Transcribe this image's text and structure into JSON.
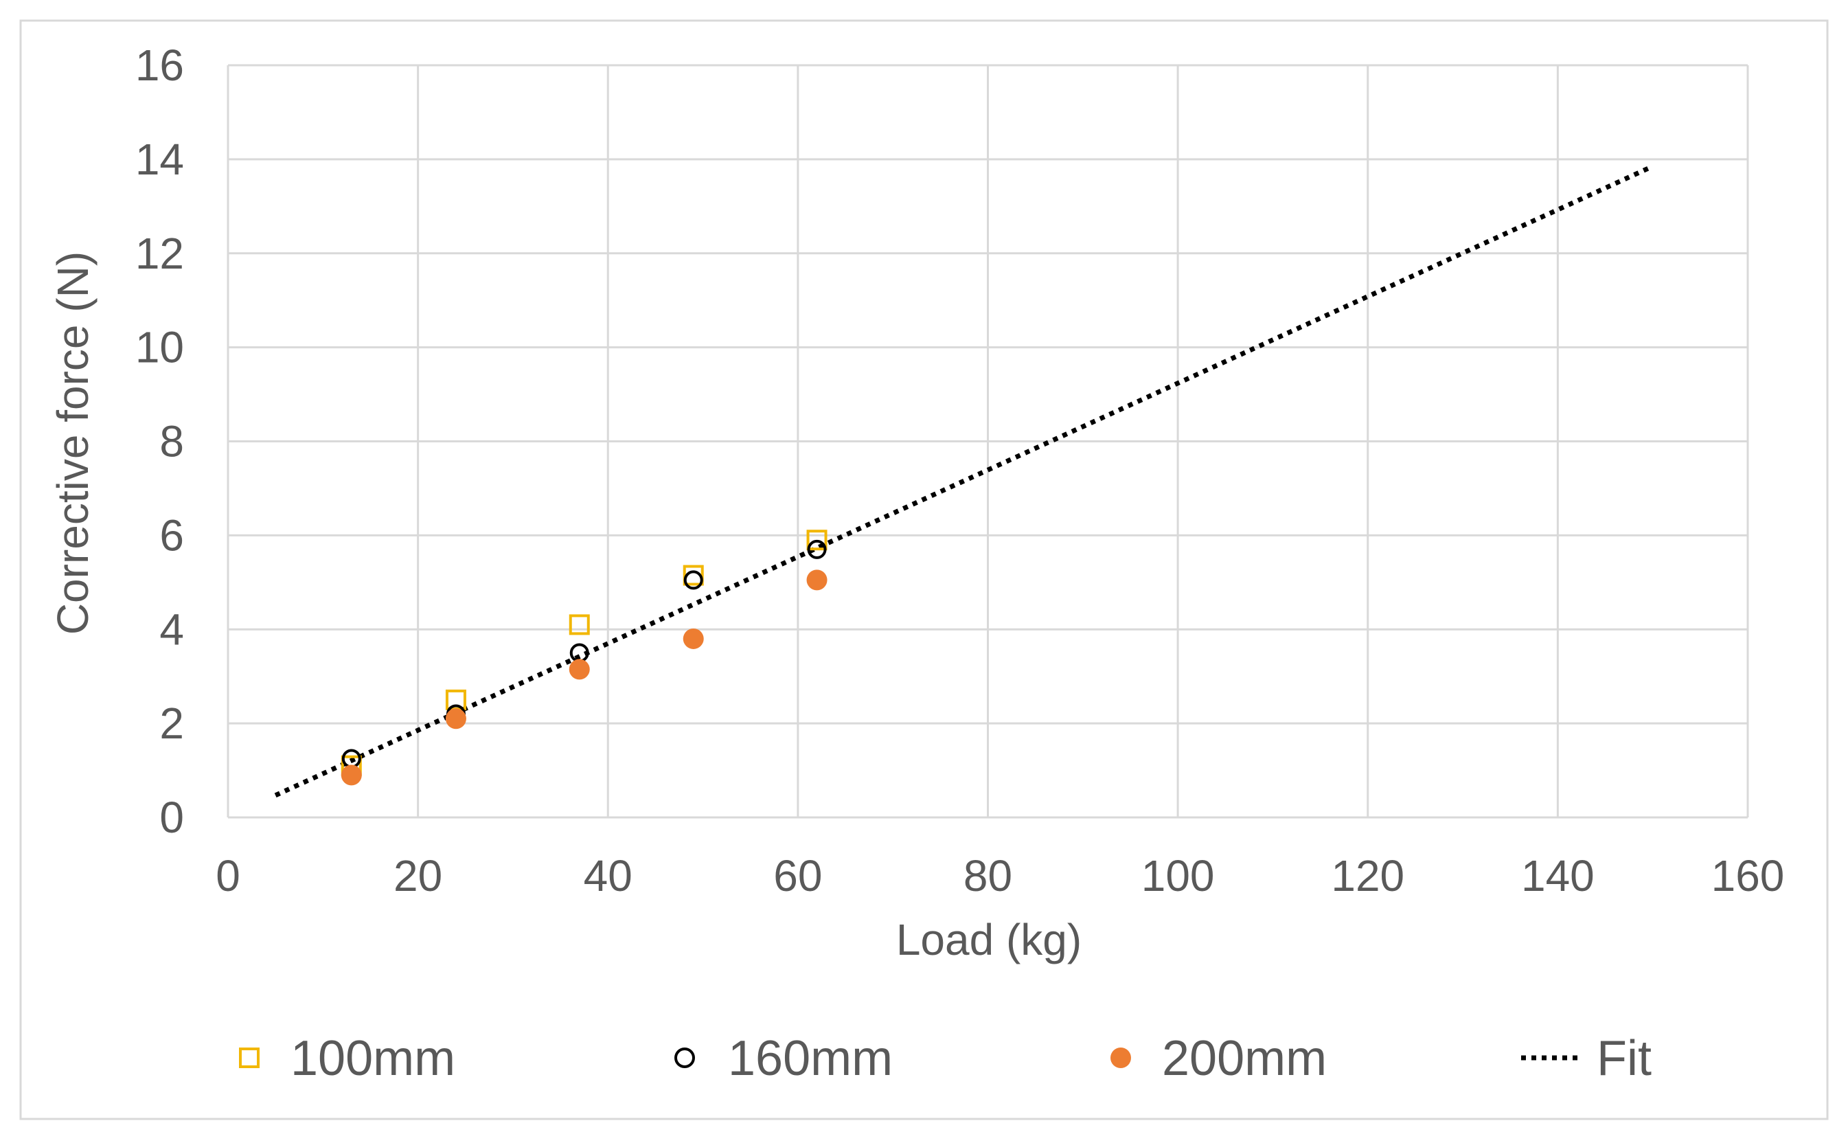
{
  "chart_data": {
    "type": "scatter",
    "title": "",
    "xlabel": "Load (kg)",
    "ylabel": "Corrective force (N)",
    "xlim": [
      0,
      160
    ],
    "ylim": [
      0,
      16
    ],
    "xticks": [
      0,
      20,
      40,
      60,
      80,
      100,
      120,
      140,
      160
    ],
    "yticks": [
      0,
      2,
      4,
      6,
      8,
      10,
      12,
      14,
      16
    ],
    "grid": true,
    "legend_position": "bottom",
    "series": [
      {
        "name": "100mm",
        "marker": "square-open",
        "color": "#f2b705",
        "x": [
          13,
          24,
          37,
          49,
          62
        ],
        "y": [
          1.1,
          2.5,
          4.1,
          5.15,
          5.9
        ]
      },
      {
        "name": "160mm",
        "marker": "circle-open",
        "color": "#000000",
        "x": [
          13,
          24,
          37,
          49,
          62
        ],
        "y": [
          1.25,
          2.2,
          3.5,
          5.05,
          5.7
        ]
      },
      {
        "name": "200mm",
        "marker": "circle-filled",
        "color": "#ed7d31",
        "x": [
          13,
          24,
          37,
          49,
          62
        ],
        "y": [
          0.9,
          2.1,
          3.15,
          3.8,
          5.05
        ]
      },
      {
        "name": "Fit",
        "marker": "dotted-line",
        "color": "#000000",
        "x": [
          5,
          150
        ],
        "y": [
          0.47,
          13.85
        ]
      }
    ]
  }
}
